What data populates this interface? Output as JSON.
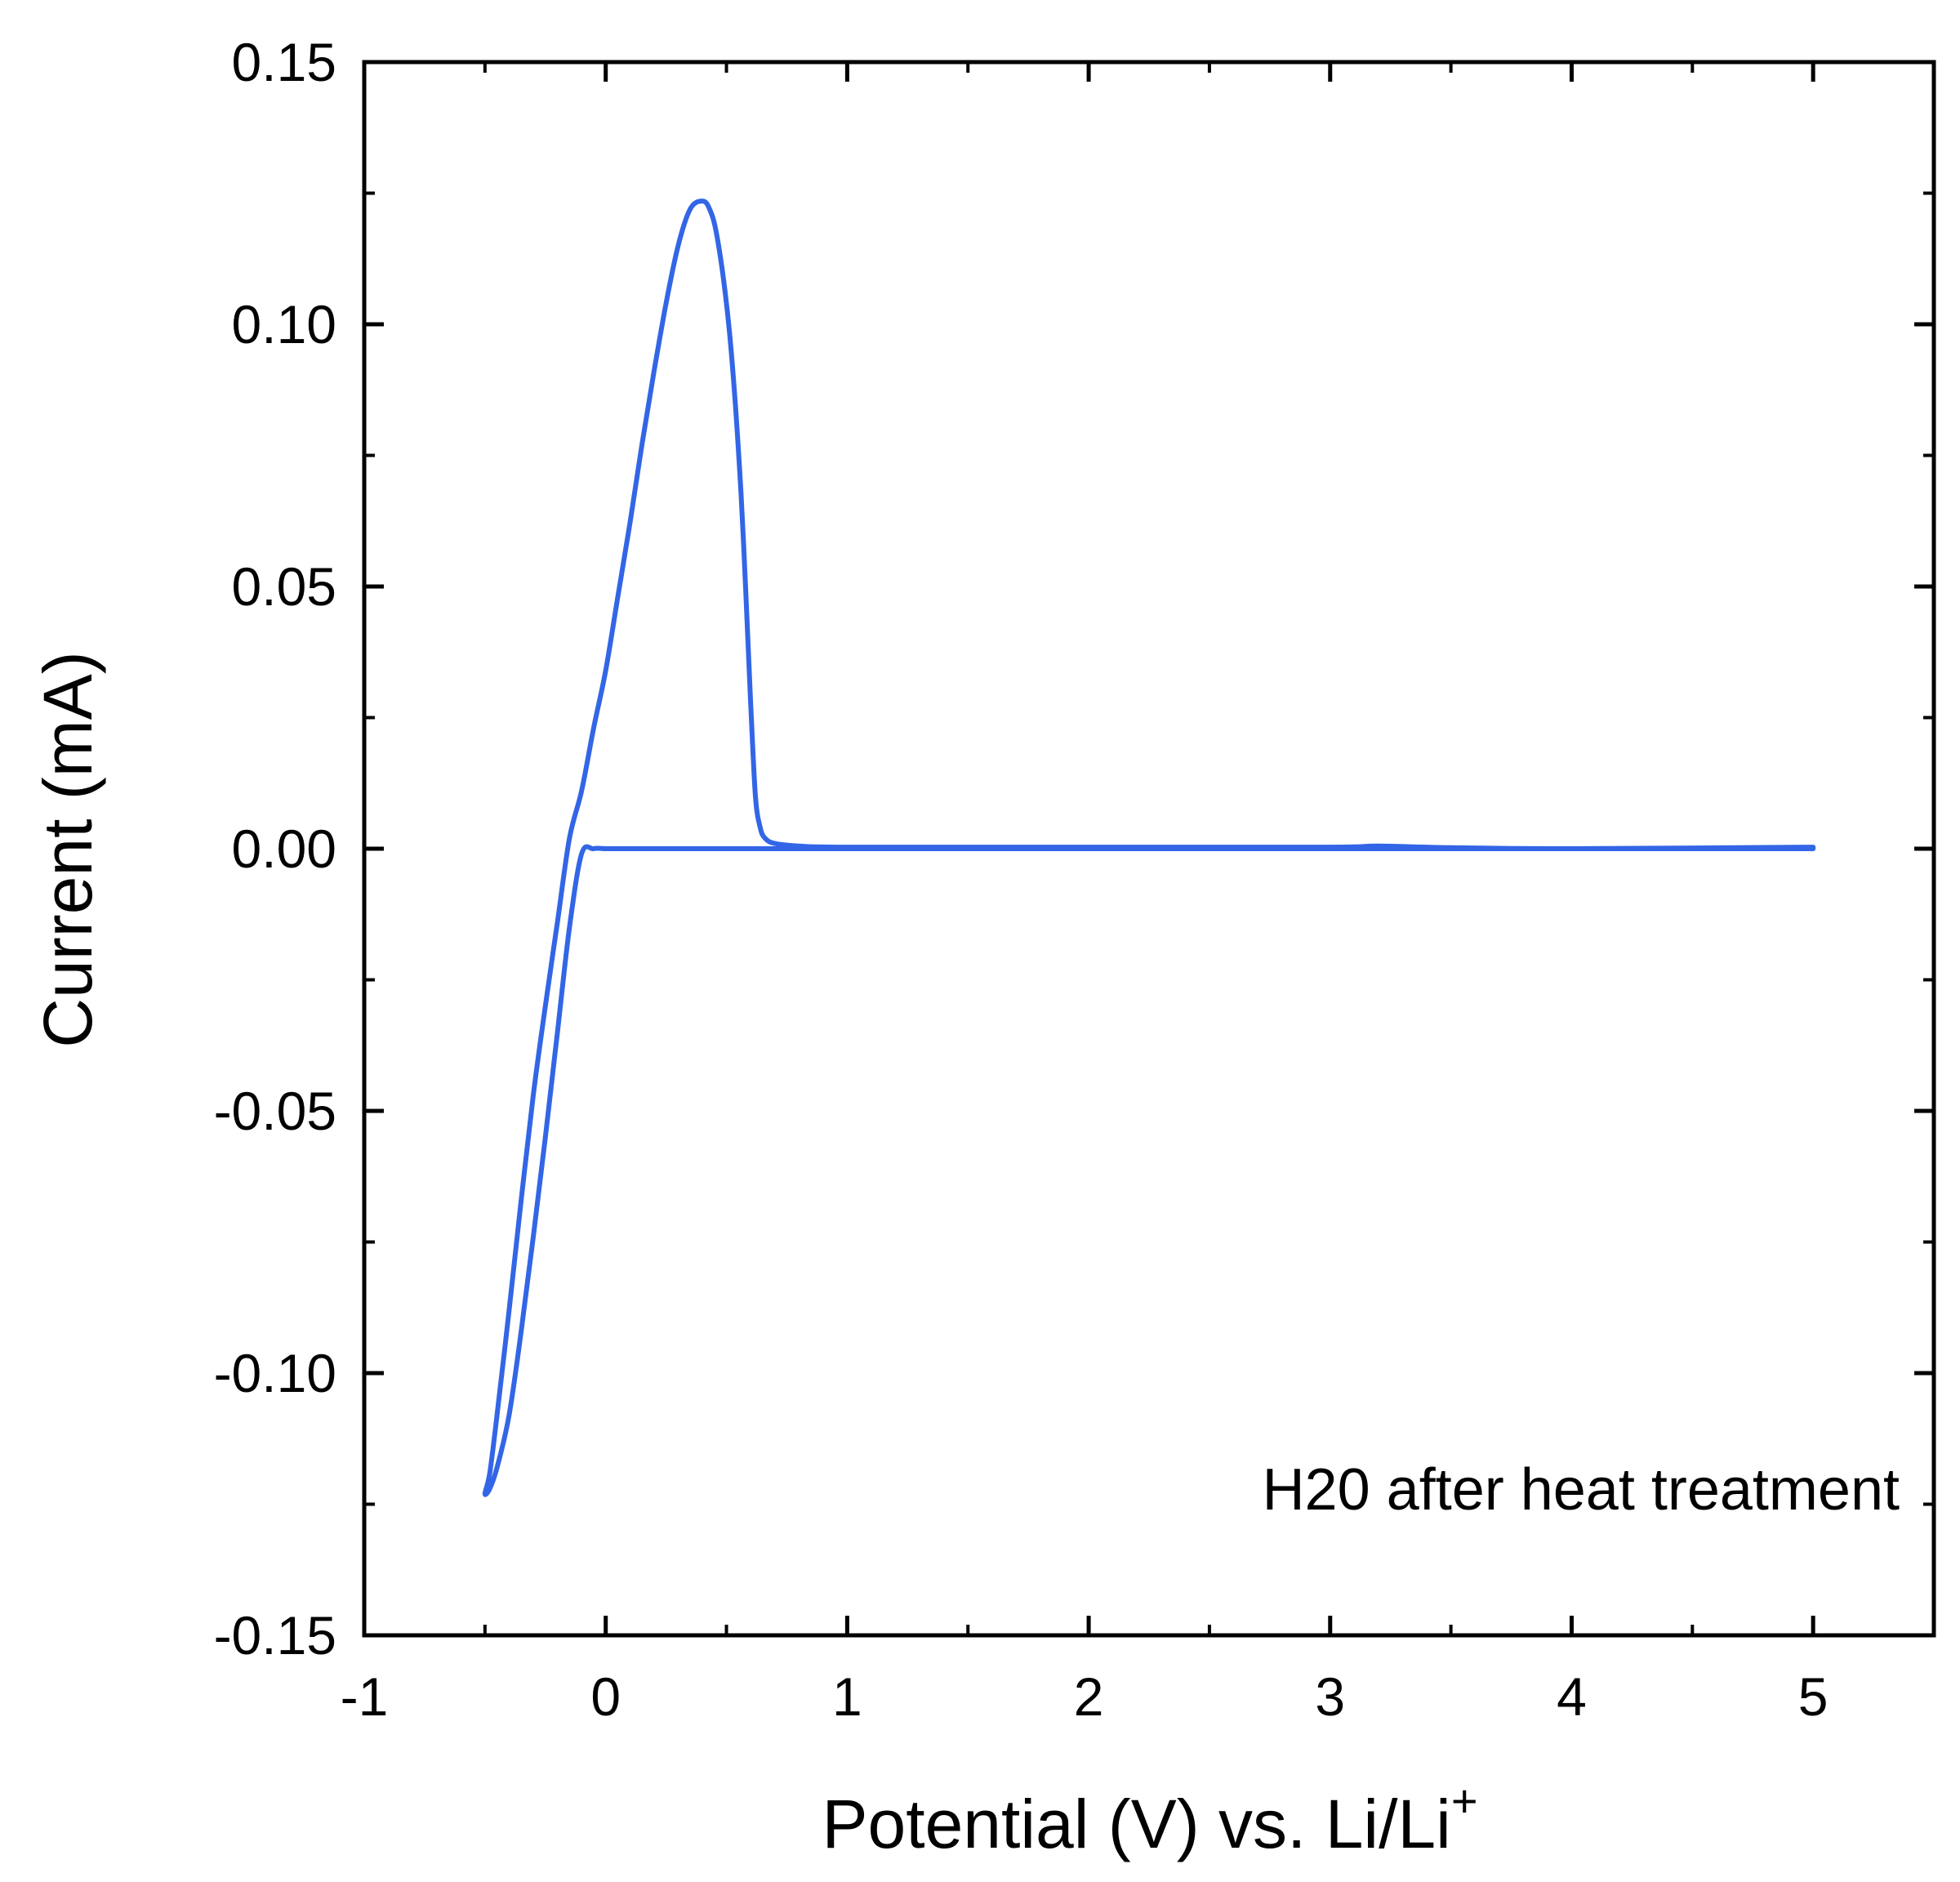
{
  "chart_data": {
    "type": "line",
    "xlabel": "Potential (V) vs. Li/Li",
    "xlabel_sup": "+",
    "ylabel": "Current (mA)",
    "xlim": [
      -1,
      5.5
    ],
    "ylim": [
      -0.15,
      0.15
    ],
    "x_ticks": [
      -1,
      0,
      1,
      2,
      3,
      4,
      5
    ],
    "x_tick_labels": [
      "-1",
      "0",
      "1",
      "2",
      "3",
      "4",
      "5"
    ],
    "y_ticks": [
      -0.15,
      -0.1,
      -0.05,
      0.0,
      0.05,
      0.1,
      0.15
    ],
    "y_tick_labels": [
      "-0.15",
      "-0.10",
      "-0.05",
      "0.00",
      "0.05",
      "0.10",
      "0.15"
    ],
    "x_minor_ticks": [
      -0.5,
      0.5,
      1.5,
      2.5,
      3.5,
      4.5,
      5.5
    ],
    "y_minor_ticks": [
      -0.125,
      -0.075,
      -0.025,
      0.025,
      0.075,
      0.125
    ],
    "grid": false,
    "annotation": "H20 after heat treatment",
    "series": [
      {
        "color": "#3366e6",
        "x": [
          5.0,
          4.0,
          3.0,
          2.0,
          1.0,
          0.5,
          0.2,
          0.05,
          0.0,
          -0.05,
          -0.1,
          -0.15,
          -0.2,
          -0.25,
          -0.3,
          -0.35,
          -0.4,
          -0.45,
          -0.48,
          -0.5,
          -0.48,
          -0.45,
          -0.4,
          -0.35,
          -0.3,
          -0.25,
          -0.2,
          -0.15,
          -0.1,
          -0.05,
          0.0,
          0.05,
          0.1,
          0.15,
          0.2,
          0.25,
          0.3,
          0.35,
          0.4,
          0.43,
          0.46,
          0.5,
          0.53,
          0.56,
          0.58,
          0.6,
          0.62,
          0.64,
          0.66,
          0.7,
          0.8,
          1.0,
          2.0,
          3.0,
          3.2,
          3.5,
          4.0,
          5.0
        ],
        "y": [
          0.0,
          0.0,
          0.0,
          0.0,
          0.0,
          0.0,
          0.0,
          0.0,
          0.0,
          0.0,
          -0.001,
          -0.015,
          -0.035,
          -0.055,
          -0.074,
          -0.092,
          -0.108,
          -0.118,
          -0.122,
          -0.123,
          -0.119,
          -0.108,
          -0.088,
          -0.067,
          -0.047,
          -0.03,
          -0.014,
          0.002,
          0.011,
          0.023,
          0.034,
          0.048,
          0.062,
          0.077,
          0.091,
          0.104,
          0.115,
          0.122,
          0.1235,
          0.122,
          0.117,
          0.104,
          0.089,
          0.068,
          0.049,
          0.028,
          0.01,
          0.004,
          0.002,
          0.001,
          0.0005,
          0.0003,
          0.0003,
          0.0003,
          0.0005,
          0.0002,
          0.0,
          0.0003
        ]
      }
    ]
  }
}
